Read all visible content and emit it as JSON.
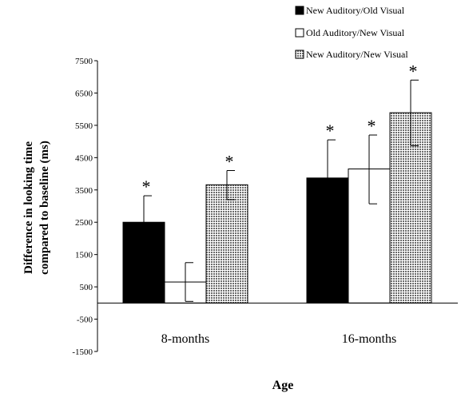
{
  "chart_data": {
    "type": "bar",
    "title": "",
    "xlabel": "Age",
    "ylabel_lines": [
      "Difference in looking time",
      "compared to baseline (ms)"
    ],
    "ylim": [
      -1500,
      7500
    ],
    "yticks": [
      -1500,
      -500,
      500,
      1500,
      2500,
      3500,
      4500,
      5500,
      6500,
      7500
    ],
    "ytick_labels": [
      "-1500",
      "-500",
      "500",
      "1500",
      "2500",
      "3500",
      "4500",
      "5500",
      "6500",
      "7500"
    ],
    "categories": [
      "8-months",
      "16-months"
    ],
    "legend_position": "top-right",
    "grid": false,
    "series": [
      {
        "name": "New Auditory/Old Visual",
        "fill": "#000000",
        "pattern": "solid",
        "values": [
          2500,
          3870
        ],
        "error_upper": [
          3320,
          5050
        ],
        "error_lower": [
          3320,
          5050
        ],
        "annotations": [
          "*",
          "*"
        ]
      },
      {
        "name": "Old Auditory/New Visual",
        "fill": "#ffffff",
        "pattern": "none",
        "values": [
          650,
          4150
        ],
        "error_upper": [
          1250,
          5200
        ],
        "error_lower": [
          50,
          3070
        ],
        "annotations": [
          "",
          "*"
        ]
      },
      {
        "name": "New Auditory/New Visual",
        "fill": "#9a9a9a",
        "pattern": "dotted",
        "values": [
          3660,
          5890
        ],
        "error_upper": [
          4100,
          6900
        ],
        "error_lower": [
          3200,
          4870
        ],
        "annotations": [
          "*",
          "*"
        ]
      }
    ]
  }
}
